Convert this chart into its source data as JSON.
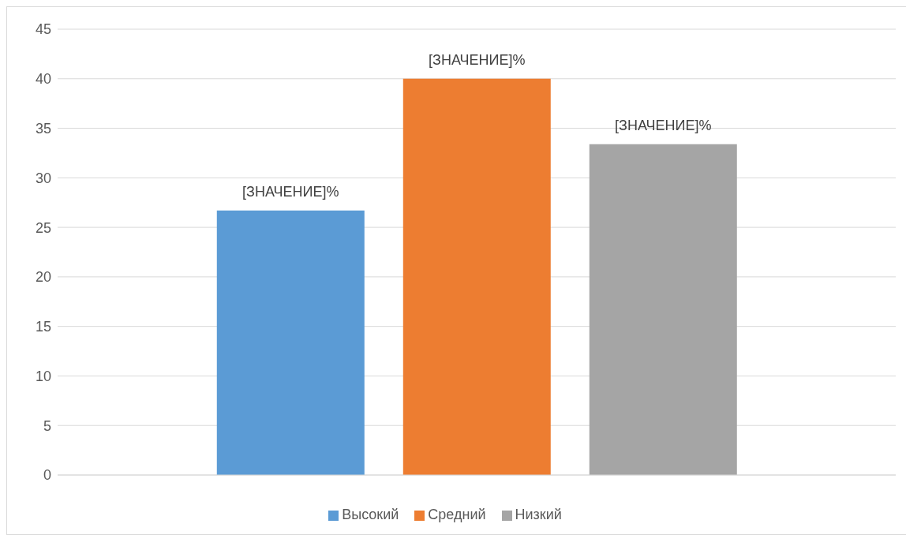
{
  "chart_data": {
    "type": "bar",
    "categories": [
      null
    ],
    "series": [
      {
        "name": "Высокий",
        "color": "#5b9bd5",
        "values": [
          26.7
        ],
        "value_labels": [
          "[ЗНАЧЕНИЕ]%"
        ]
      },
      {
        "name": "Средний",
        "color": "#ed7d31",
        "values": [
          40
        ],
        "value_labels": [
          "[ЗНАЧЕНИЕ]%"
        ]
      },
      {
        "name": "Низкий",
        "color": "#a5a5a5",
        "values": [
          33.4
        ],
        "value_labels": [
          "[ЗНАЧЕНИЕ]%"
        ]
      }
    ],
    "ylim": [
      0,
      45
    ],
    "yticks": [
      0,
      5,
      10,
      15,
      20,
      25,
      30,
      35,
      40,
      45
    ],
    "grid": "y",
    "legend": "bottom"
  }
}
